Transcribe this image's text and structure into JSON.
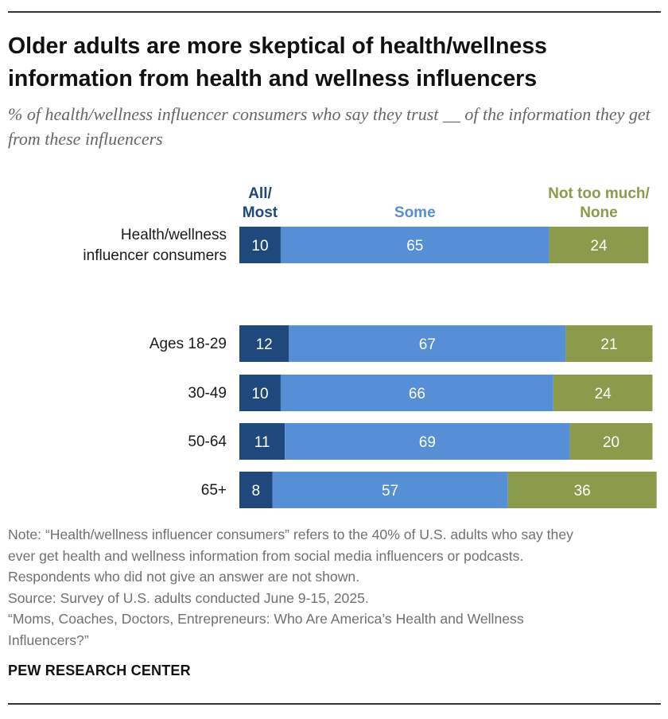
{
  "header": {
    "title": "Older adults are more skeptical of health/wellness information from health and wellness influencers",
    "subtitle": "% of health/wellness influencer consumers who say they trust __ of the information they get from these influencers"
  },
  "chart_data": {
    "type": "bar",
    "orientation": "horizontal",
    "stacked": true,
    "categories": [
      "Health/wellness influencer consumers",
      "Ages 18-29",
      "30-49",
      "50-64",
      "65+"
    ],
    "category_lines": [
      [
        "Health/wellness",
        "influencer consumers"
      ],
      [
        "Ages 18-29"
      ],
      [
        "30-49"
      ],
      [
        "50-64"
      ],
      [
        "65+"
      ]
    ],
    "series": [
      {
        "name": "All/ Most",
        "name_lines": [
          "All/",
          "Most"
        ],
        "color": "#1f497d",
        "label_color": "#1f497d",
        "values": [
          10,
          12,
          10,
          11,
          8
        ]
      },
      {
        "name": "Some",
        "name_lines": [
          "Some"
        ],
        "color": "#568fd6",
        "label_color": "#568fd6",
        "values": [
          65,
          67,
          66,
          69,
          57
        ]
      },
      {
        "name": "Not too much/ None",
        "name_lines": [
          "Not too much/",
          "None"
        ],
        "color": "#8c9b4b",
        "label_color": "#8c9b4b",
        "values": [
          24,
          21,
          24,
          20,
          36
        ]
      }
    ],
    "data_labels": true,
    "legend": "column headers above bars",
    "grid": false
  },
  "notes": [
    "Note: “Health/wellness influencer consumers” refers to the 40% of U.S. adults who say they",
    "ever get health and wellness information from social media influencers or podcasts.",
    "Respondents who did not give an answer are not shown.",
    "Source: Survey of U.S. adults conducted June 9-15, 2025.",
    "“Moms, Coaches, Doctors, Entrepreneurs: Who Are America’s Health and Wellness",
    "Influencers?”"
  ],
  "brand": "PEW RESEARCH CENTER"
}
